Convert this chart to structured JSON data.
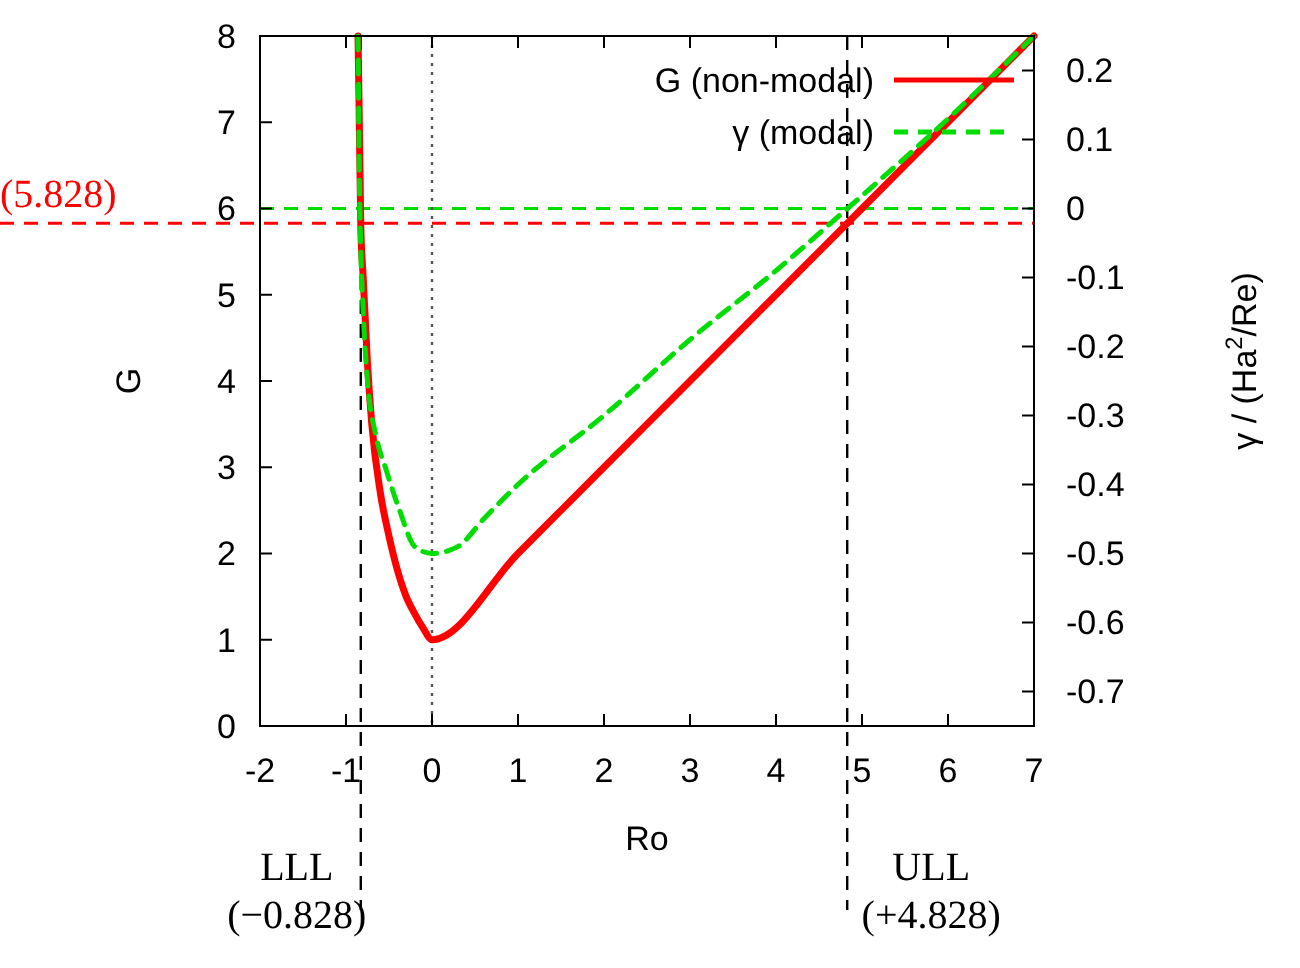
{
  "chart_data": {
    "type": "line",
    "xlabel": "Ro",
    "ylabel": "G",
    "y2label": "γ / (Ha$^{2}$/Re)",
    "xlim": [
      -2,
      7
    ],
    "xticks": [
      -2,
      -1,
      0,
      1,
      2,
      3,
      4,
      5,
      6,
      7
    ],
    "ylim": [
      0,
      8
    ],
    "yticks": [
      0,
      1,
      2,
      3,
      4,
      5,
      6,
      7,
      8
    ],
    "y2lim": [
      -0.75,
      0.25
    ],
    "y2ticks": [
      -0.7,
      -0.6,
      -0.5,
      -0.4,
      -0.3,
      -0.2,
      -0.1,
      0,
      0.1,
      0.2
    ],
    "legend": "top right",
    "series": [
      {
        "name": "G (non-modal)",
        "color": "#ff0000",
        "line_style": "solid",
        "x": [
          -0.86,
          -0.845,
          -0.828,
          -0.8,
          -0.75,
          -0.7,
          -0.6,
          -0.5,
          -0.4,
          -0.3,
          -0.2,
          -0.1,
          0,
          1,
          2,
          3,
          4,
          5,
          6,
          7
        ],
        "values": [
          8,
          7,
          5.8,
          5.2,
          4.2,
          3.5,
          2.7,
          2.2,
          1.8,
          1.5,
          1.3,
          1.13,
          1,
          2,
          3,
          4,
          5,
          6,
          7,
          8
        ]
      },
      {
        "name": "γ (modal)",
        "color": "#00dd00",
        "line_style": "dashed",
        "axis": "y2",
        "x": [
          -0.86,
          -0.845,
          -0.83,
          -0.8,
          -0.75,
          -0.65,
          -0.53,
          -0.37,
          -0.2,
          0,
          0.3,
          0.6,
          1,
          2,
          3,
          4,
          4.83,
          6,
          7
        ],
        "values": [
          0.25,
          0.05,
          -0.05,
          -0.15,
          -0.25,
          -0.33,
          -0.38,
          -0.44,
          -0.49,
          -0.5,
          -0.49,
          -0.45,
          -0.4,
          -0.3,
          -0.19,
          -0.09,
          0,
          0.13,
          0.25
        ]
      }
    ],
    "ref_lines": [
      {
        "axis": "y",
        "value": 5.828,
        "label": "(5.828)",
        "color": "#ff0000",
        "line_style": "dashed"
      },
      {
        "axis": "y2",
        "value": 0,
        "color": "#00dd00",
        "line_style": "dashed"
      },
      {
        "axis": "x",
        "value": -0.828,
        "label": "LLL\n(−0.828)",
        "color": "#000000",
        "line_style": "dashed"
      },
      {
        "axis": "x",
        "value": 0,
        "color": "#555555",
        "line_style": "dotted"
      },
      {
        "axis": "x",
        "value": 4.828,
        "label": "ULL\n(+4.828)",
        "color": "#000000",
        "line_style": "dashed"
      }
    ]
  }
}
